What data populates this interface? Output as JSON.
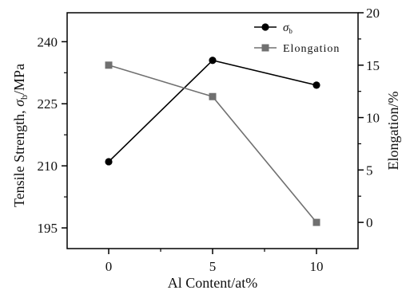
{
  "chart_data": {
    "type": "line",
    "x": [
      0,
      5,
      10
    ],
    "xlabel": "Al Content/at%",
    "xlim": [
      -2,
      12
    ],
    "xticks": [
      0,
      5,
      10
    ],
    "ylabel_left_main": "Tensile Strength, ",
    "ylabel_left_symbol": "σ",
    "ylabel_left_sub": "b",
    "ylabel_left_unit": "/MPa",
    "ylim_left": [
      190,
      247
    ],
    "yticks_left": [
      195,
      210,
      225,
      240
    ],
    "ylabel_right": "Elongation/%",
    "ylim_right": [
      -2.5,
      20
    ],
    "yticks_right": [
      0,
      5,
      10,
      15,
      20
    ],
    "legend_placement": "top-right",
    "series": [
      {
        "name": "σ",
        "name_sub": "b",
        "axis": "left",
        "marker": "circle",
        "color": "#000000",
        "values": [
          211,
          235.5,
          229.5
        ]
      },
      {
        "name": "Elongation",
        "axis": "right",
        "marker": "square",
        "color": "#707070",
        "values": [
          15,
          12,
          0
        ]
      }
    ]
  }
}
